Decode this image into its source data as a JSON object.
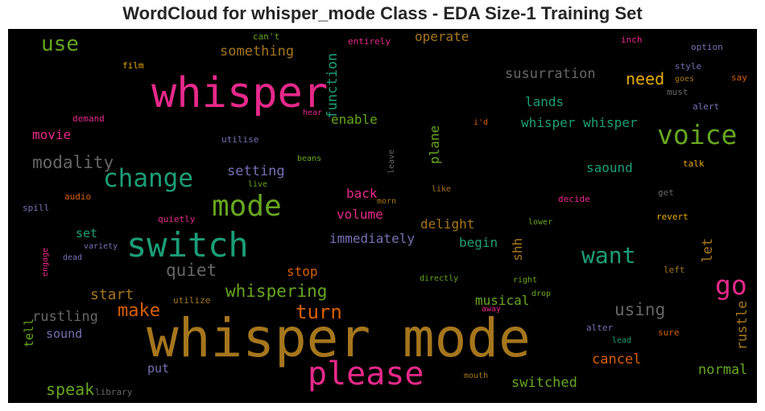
{
  "title": "WordCloud for whisper_mode Class - EDA Size-1 Training Set",
  "chart_data": {
    "type": "wordcloud",
    "title": "WordCloud for whisper_mode Class - EDA Size-1 Training Set",
    "background": "#000000",
    "colormap": [
      "#1b9e77",
      "#d95f02",
      "#7570b3",
      "#e7298a",
      "#66a61e",
      "#e6ab02",
      "#a6761d",
      "#666666"
    ],
    "words": [
      {
        "text": "whisper mode",
        "weight": 1.0,
        "color": "#a6761d"
      },
      {
        "text": "whisper",
        "weight": 0.62,
        "color": "#e7298a"
      },
      {
        "text": "please",
        "weight": 0.5,
        "color": "#e7298a"
      },
      {
        "text": "switch",
        "weight": 0.55,
        "color": "#1b9e77"
      },
      {
        "text": "mode",
        "weight": 0.45,
        "color": "#66a61e"
      },
      {
        "text": "change",
        "weight": 0.4,
        "color": "#1b9e77"
      },
      {
        "text": "voice",
        "weight": 0.4,
        "color": "#66a61e"
      },
      {
        "text": "go",
        "weight": 0.4,
        "color": "#e7298a"
      },
      {
        "text": "want",
        "weight": 0.35,
        "color": "#1b9e77"
      },
      {
        "text": "use",
        "weight": 0.3,
        "color": "#66a61e"
      },
      {
        "text": "turn",
        "weight": 0.3,
        "color": "#d95f02"
      },
      {
        "text": "make",
        "weight": 0.28,
        "color": "#d95f02"
      },
      {
        "text": "whispering",
        "weight": 0.26,
        "color": "#66a61e"
      },
      {
        "text": "quiet",
        "weight": 0.26,
        "color": "#666666"
      },
      {
        "text": "modality",
        "weight": 0.26,
        "color": "#666666"
      },
      {
        "text": "using",
        "weight": 0.26,
        "color": "#666666"
      },
      {
        "text": "need",
        "weight": 0.24,
        "color": "#e6ab02"
      },
      {
        "text": "speak",
        "weight": 0.24,
        "color": "#66a61e"
      },
      {
        "text": "start",
        "weight": 0.22,
        "color": "#a6761d"
      },
      {
        "text": "setting",
        "weight": 0.2,
        "color": "#7570b3"
      },
      {
        "text": "function",
        "weight": 0.2,
        "color": "#1b9e77"
      },
      {
        "text": "susurration",
        "weight": 0.2,
        "color": "#666666"
      },
      {
        "text": "something",
        "weight": 0.2,
        "color": "#a6761d"
      },
      {
        "text": "rustling",
        "weight": 0.2,
        "color": "#666666"
      },
      {
        "text": "cancel",
        "weight": 0.2,
        "color": "#d95f02"
      },
      {
        "text": "normal",
        "weight": 0.2,
        "color": "#66a61e"
      },
      {
        "text": "switched",
        "weight": 0.2,
        "color": "#66a61e"
      },
      {
        "text": "rustle",
        "weight": 0.2,
        "color": "#a6761d"
      },
      {
        "text": "let",
        "weight": 0.2,
        "color": "#a6761d"
      },
      {
        "text": "whisper whisper",
        "weight": 0.19,
        "color": "#1b9e77"
      },
      {
        "text": "saound",
        "weight": 0.19,
        "color": "#1b9e77"
      },
      {
        "text": "lands",
        "weight": 0.19,
        "color": "#1b9e77"
      },
      {
        "text": "operate",
        "weight": 0.19,
        "color": "#a6761d"
      },
      {
        "text": "stop",
        "weight": 0.19,
        "color": "#d95f02"
      },
      {
        "text": "musical",
        "weight": 0.19,
        "color": "#66a61e"
      },
      {
        "text": "delight",
        "weight": 0.19,
        "color": "#a6761d"
      },
      {
        "text": "begin",
        "weight": 0.19,
        "color": "#1b9e77"
      },
      {
        "text": "volume",
        "weight": 0.19,
        "color": "#e7298a"
      },
      {
        "text": "back",
        "weight": 0.19,
        "color": "#e7298a"
      },
      {
        "text": "immediately",
        "weight": 0.19,
        "color": "#7570b3"
      },
      {
        "text": "enable",
        "weight": 0.19,
        "color": "#66a61e"
      },
      {
        "text": "plane",
        "weight": 0.18,
        "color": "#66a61e"
      },
      {
        "text": "shh",
        "weight": 0.18,
        "color": "#a6761d"
      },
      {
        "text": "movie",
        "weight": 0.17,
        "color": "#e7298a"
      },
      {
        "text": "set",
        "weight": 0.17,
        "color": "#1b9e77"
      },
      {
        "text": "tell",
        "weight": 0.17,
        "color": "#66a61e"
      },
      {
        "text": "sound",
        "weight": 0.17,
        "color": "#7570b3"
      },
      {
        "text": "put",
        "weight": 0.16,
        "color": "#7570b3"
      },
      {
        "text": "can't",
        "weight": 0.12,
        "color": "#66a61e"
      },
      {
        "text": "entirely",
        "weight": 0.12,
        "color": "#e7298a"
      },
      {
        "text": "inch",
        "weight": 0.12,
        "color": "#e7298a"
      },
      {
        "text": "option",
        "weight": 0.12,
        "color": "#7570b3"
      },
      {
        "text": "film",
        "weight": 0.12,
        "color": "#e6ab02"
      },
      {
        "text": "style",
        "weight": 0.12,
        "color": "#7570b3"
      },
      {
        "text": "goes",
        "weight": 0.11,
        "color": "#a6761d"
      },
      {
        "text": "say",
        "weight": 0.12,
        "color": "#d95f02"
      },
      {
        "text": "must",
        "weight": 0.12,
        "color": "#666666"
      },
      {
        "text": "alert",
        "weight": 0.12,
        "color": "#7570b3"
      },
      {
        "text": "demand",
        "weight": 0.12,
        "color": "#e7298a"
      },
      {
        "text": "hear",
        "weight": 0.11,
        "color": "#e7298a"
      },
      {
        "text": "i'd",
        "weight": 0.11,
        "color": "#d95f02"
      },
      {
        "text": "utilise",
        "weight": 0.12,
        "color": "#7570b3"
      },
      {
        "text": "beans",
        "weight": 0.11,
        "color": "#66a61e"
      },
      {
        "text": "leave",
        "weight": 0.11,
        "color": "#666666"
      },
      {
        "text": "talk",
        "weight": 0.12,
        "color": "#e6ab02"
      },
      {
        "text": "live",
        "weight": 0.11,
        "color": "#66a61e"
      },
      {
        "text": "like",
        "weight": 0.11,
        "color": "#a6761d"
      },
      {
        "text": "morn",
        "weight": 0.11,
        "color": "#a6761d"
      },
      {
        "text": "decide",
        "weight": 0.12,
        "color": "#e7298a"
      },
      {
        "text": "get",
        "weight": 0.11,
        "color": "#666666"
      },
      {
        "text": "audio",
        "weight": 0.12,
        "color": "#d95f02"
      },
      {
        "text": "spill",
        "weight": 0.12,
        "color": "#7570b3"
      },
      {
        "text": "quietly",
        "weight": 0.12,
        "color": "#e7298a"
      },
      {
        "text": "lower",
        "weight": 0.11,
        "color": "#66a61e"
      },
      {
        "text": "revert",
        "weight": 0.12,
        "color": "#e6ab02"
      },
      {
        "text": "variety",
        "weight": 0.11,
        "color": "#7570b3"
      },
      {
        "text": "dead",
        "weight": 0.11,
        "color": "#7570b3"
      },
      {
        "text": "engage",
        "weight": 0.11,
        "color": "#e7298a"
      },
      {
        "text": "left",
        "weight": 0.12,
        "color": "#a6761d"
      },
      {
        "text": "directly",
        "weight": 0.11,
        "color": "#66a61e"
      },
      {
        "text": "right",
        "weight": 0.11,
        "color": "#66a61e"
      },
      {
        "text": "drop",
        "weight": 0.11,
        "color": "#66a61e"
      },
      {
        "text": "utilize",
        "weight": 0.12,
        "color": "#a6761d"
      },
      {
        "text": "away",
        "weight": 0.11,
        "color": "#e7298a"
      },
      {
        "text": "alter",
        "weight": 0.12,
        "color": "#7570b3"
      },
      {
        "text": "sure",
        "weight": 0.12,
        "color": "#d95f02"
      },
      {
        "text": "lead",
        "weight": 0.11,
        "color": "#1b9e77"
      },
      {
        "text": "mouth",
        "weight": 0.11,
        "color": "#a6761d"
      },
      {
        "text": "library",
        "weight": 0.12,
        "color": "#666666"
      }
    ]
  }
}
